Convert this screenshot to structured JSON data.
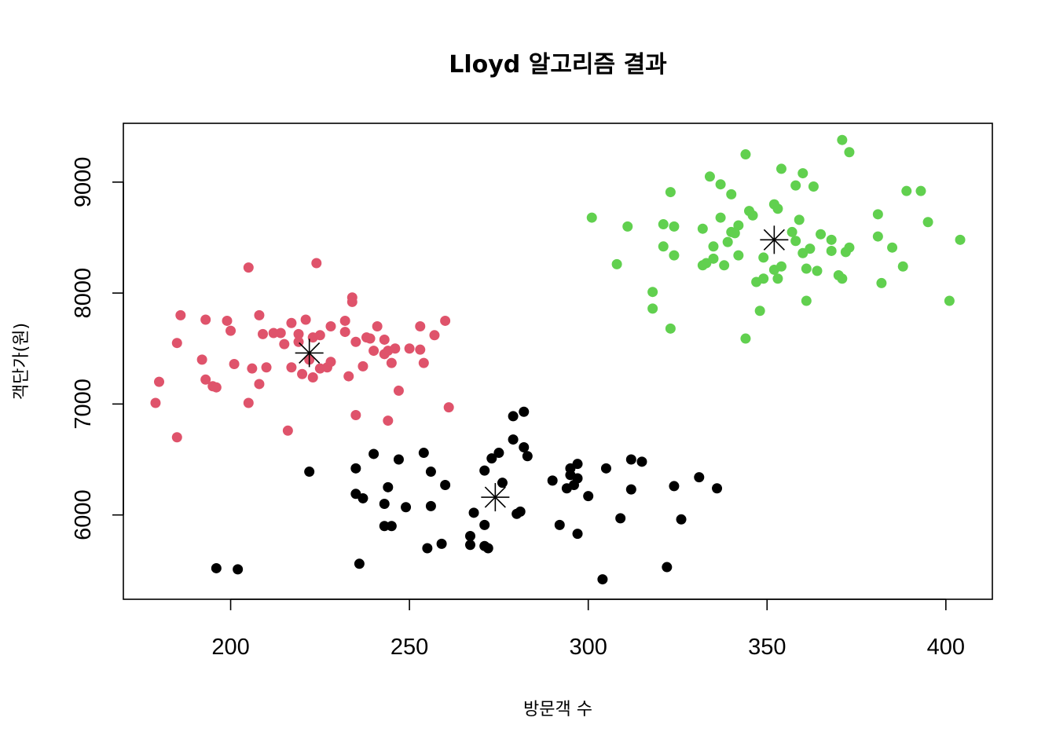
{
  "chart_data": {
    "type": "scatter",
    "title": "Lloyd 알고리즘 결과",
    "xlabel": "방문객 수",
    "ylabel": "객단가(원)",
    "xlim": [
      170,
      413
    ],
    "ylim": [
      5240,
      9530
    ],
    "xticks": [
      200,
      250,
      300,
      350,
      400
    ],
    "yticks": [
      6000,
      7000,
      8000,
      9000
    ],
    "legend": "none",
    "grid": false,
    "series": [
      {
        "color": "#DF536B",
        "points": [
          [
            179,
            7010
          ],
          [
            180,
            7200
          ],
          [
            185,
            6700
          ],
          [
            185,
            7550
          ],
          [
            186,
            7800
          ],
          [
            192,
            7400
          ],
          [
            193,
            7760
          ],
          [
            193,
            7220
          ],
          [
            195,
            7160
          ],
          [
            196,
            7150
          ],
          [
            199,
            7750
          ],
          [
            200,
            7660
          ],
          [
            201,
            7360
          ],
          [
            205,
            8230
          ],
          [
            205,
            7010
          ],
          [
            206,
            7320
          ],
          [
            208,
            7180
          ],
          [
            208,
            7800
          ],
          [
            209,
            7630
          ],
          [
            210,
            7330
          ],
          [
            212,
            7640
          ],
          [
            214,
            7640
          ],
          [
            215,
            7540
          ],
          [
            216,
            6760
          ],
          [
            217,
            7730
          ],
          [
            217,
            7330
          ],
          [
            219,
            7630
          ],
          [
            219,
            7560
          ],
          [
            220,
            7270
          ],
          [
            221,
            7760
          ],
          [
            222,
            7400
          ],
          [
            223,
            7240
          ],
          [
            223,
            7600
          ],
          [
            224,
            8270
          ],
          [
            225,
            7320
          ],
          [
            225,
            7620
          ],
          [
            227,
            7330
          ],
          [
            228,
            7380
          ],
          [
            228,
            7700
          ],
          [
            232,
            7750
          ],
          [
            232,
            7650
          ],
          [
            233,
            7250
          ],
          [
            234,
            7960
          ],
          [
            234,
            7920
          ],
          [
            235,
            6900
          ],
          [
            235,
            7560
          ],
          [
            237,
            7340
          ],
          [
            238,
            7600
          ],
          [
            239,
            7590
          ],
          [
            240,
            7480
          ],
          [
            241,
            7700
          ],
          [
            243,
            7580
          ],
          [
            243,
            7450
          ],
          [
            244,
            7480
          ],
          [
            244,
            6850
          ],
          [
            245,
            7370
          ],
          [
            246,
            7500
          ],
          [
            247,
            7120
          ],
          [
            250,
            7500
          ],
          [
            253,
            7490
          ],
          [
            253,
            7700
          ],
          [
            254,
            7370
          ],
          [
            257,
            7620
          ],
          [
            260,
            7750
          ],
          [
            261,
            6970
          ]
        ]
      },
      {
        "color": "#000000",
        "points": [
          [
            196,
            5520
          ],
          [
            202,
            5510
          ],
          [
            222,
            6390
          ],
          [
            235,
            6190
          ],
          [
            235,
            6420
          ],
          [
            236,
            5560
          ],
          [
            237,
            6150
          ],
          [
            240,
            6550
          ],
          [
            243,
            6100
          ],
          [
            243,
            5900
          ],
          [
            244,
            6250
          ],
          [
            245,
            5900
          ],
          [
            247,
            6500
          ],
          [
            249,
            6070
          ],
          [
            254,
            6560
          ],
          [
            255,
            5700
          ],
          [
            256,
            6080
          ],
          [
            256,
            6390
          ],
          [
            259,
            5740
          ],
          [
            260,
            6270
          ],
          [
            267,
            5810
          ],
          [
            267,
            5730
          ],
          [
            268,
            6020
          ],
          [
            271,
            5910
          ],
          [
            271,
            6400
          ],
          [
            271,
            5720
          ],
          [
            272,
            5700
          ],
          [
            273,
            6510
          ],
          [
            275,
            6560
          ],
          [
            276,
            6290
          ],
          [
            279,
            6890
          ],
          [
            279,
            6680
          ],
          [
            280,
            6010
          ],
          [
            281,
            6030
          ],
          [
            282,
            6930
          ],
          [
            282,
            6610
          ],
          [
            283,
            6530
          ],
          [
            290,
            6310
          ],
          [
            292,
            5910
          ],
          [
            294,
            6240
          ],
          [
            295,
            6420
          ],
          [
            295,
            6360
          ],
          [
            296,
            6270
          ],
          [
            297,
            6460
          ],
          [
            297,
            6330
          ],
          [
            297,
            5830
          ],
          [
            300,
            6170
          ],
          [
            304,
            5420
          ],
          [
            305,
            6420
          ],
          [
            309,
            5970
          ],
          [
            312,
            6500
          ],
          [
            312,
            6230
          ],
          [
            315,
            6480
          ],
          [
            322,
            5530
          ],
          [
            324,
            6260
          ],
          [
            326,
            5960
          ],
          [
            331,
            6340
          ],
          [
            336,
            6240
          ]
        ]
      },
      {
        "color": "#61D04F",
        "points": [
          [
            301,
            8680
          ],
          [
            308,
            8260
          ],
          [
            311,
            8600
          ],
          [
            318,
            8010
          ],
          [
            318,
            7860
          ],
          [
            321,
            8620
          ],
          [
            321,
            8420
          ],
          [
            323,
            7680
          ],
          [
            323,
            8910
          ],
          [
            324,
            8600
          ],
          [
            324,
            8340
          ],
          [
            332,
            8250
          ],
          [
            332,
            8580
          ],
          [
            333,
            8270
          ],
          [
            334,
            9050
          ],
          [
            335,
            8310
          ],
          [
            335,
            8420
          ],
          [
            337,
            8680
          ],
          [
            337,
            8980
          ],
          [
            338,
            8250
          ],
          [
            339,
            8460
          ],
          [
            340,
            8550
          ],
          [
            340,
            8890
          ],
          [
            342,
            8340
          ],
          [
            342,
            8610
          ],
          [
            341,
            8540
          ],
          [
            344,
            9250
          ],
          [
            344,
            7590
          ],
          [
            345,
            8740
          ],
          [
            346,
            8700
          ],
          [
            347,
            8100
          ],
          [
            348,
            7840
          ],
          [
            349,
            8320
          ],
          [
            349,
            8130
          ],
          [
            352,
            8800
          ],
          [
            352,
            8210
          ],
          [
            353,
            8760
          ],
          [
            353,
            8130
          ],
          [
            354,
            8240
          ],
          [
            354,
            9120
          ],
          [
            357,
            8550
          ],
          [
            358,
            8970
          ],
          [
            358,
            8470
          ],
          [
            359,
            8660
          ],
          [
            360,
            9080
          ],
          [
            360,
            8360
          ],
          [
            361,
            8220
          ],
          [
            361,
            7930
          ],
          [
            362,
            8400
          ],
          [
            363,
            8960
          ],
          [
            364,
            8200
          ],
          [
            365,
            8530
          ],
          [
            368,
            8480
          ],
          [
            368,
            8380
          ],
          [
            370,
            8160
          ],
          [
            371,
            8130
          ],
          [
            371,
            9380
          ],
          [
            372,
            8370
          ],
          [
            373,
            8410
          ],
          [
            373,
            9270
          ],
          [
            381,
            8710
          ],
          [
            381,
            8510
          ],
          [
            382,
            8090
          ],
          [
            385,
            8410
          ],
          [
            388,
            8240
          ],
          [
            389,
            8920
          ],
          [
            393,
            8920
          ],
          [
            395,
            8640
          ],
          [
            401,
            7930
          ],
          [
            404,
            8480
          ]
        ]
      }
    ],
    "centroids": [
      {
        "x": 222,
        "y": 7460
      },
      {
        "x": 274,
        "y": 6160
      },
      {
        "x": 352,
        "y": 8480
      }
    ]
  }
}
